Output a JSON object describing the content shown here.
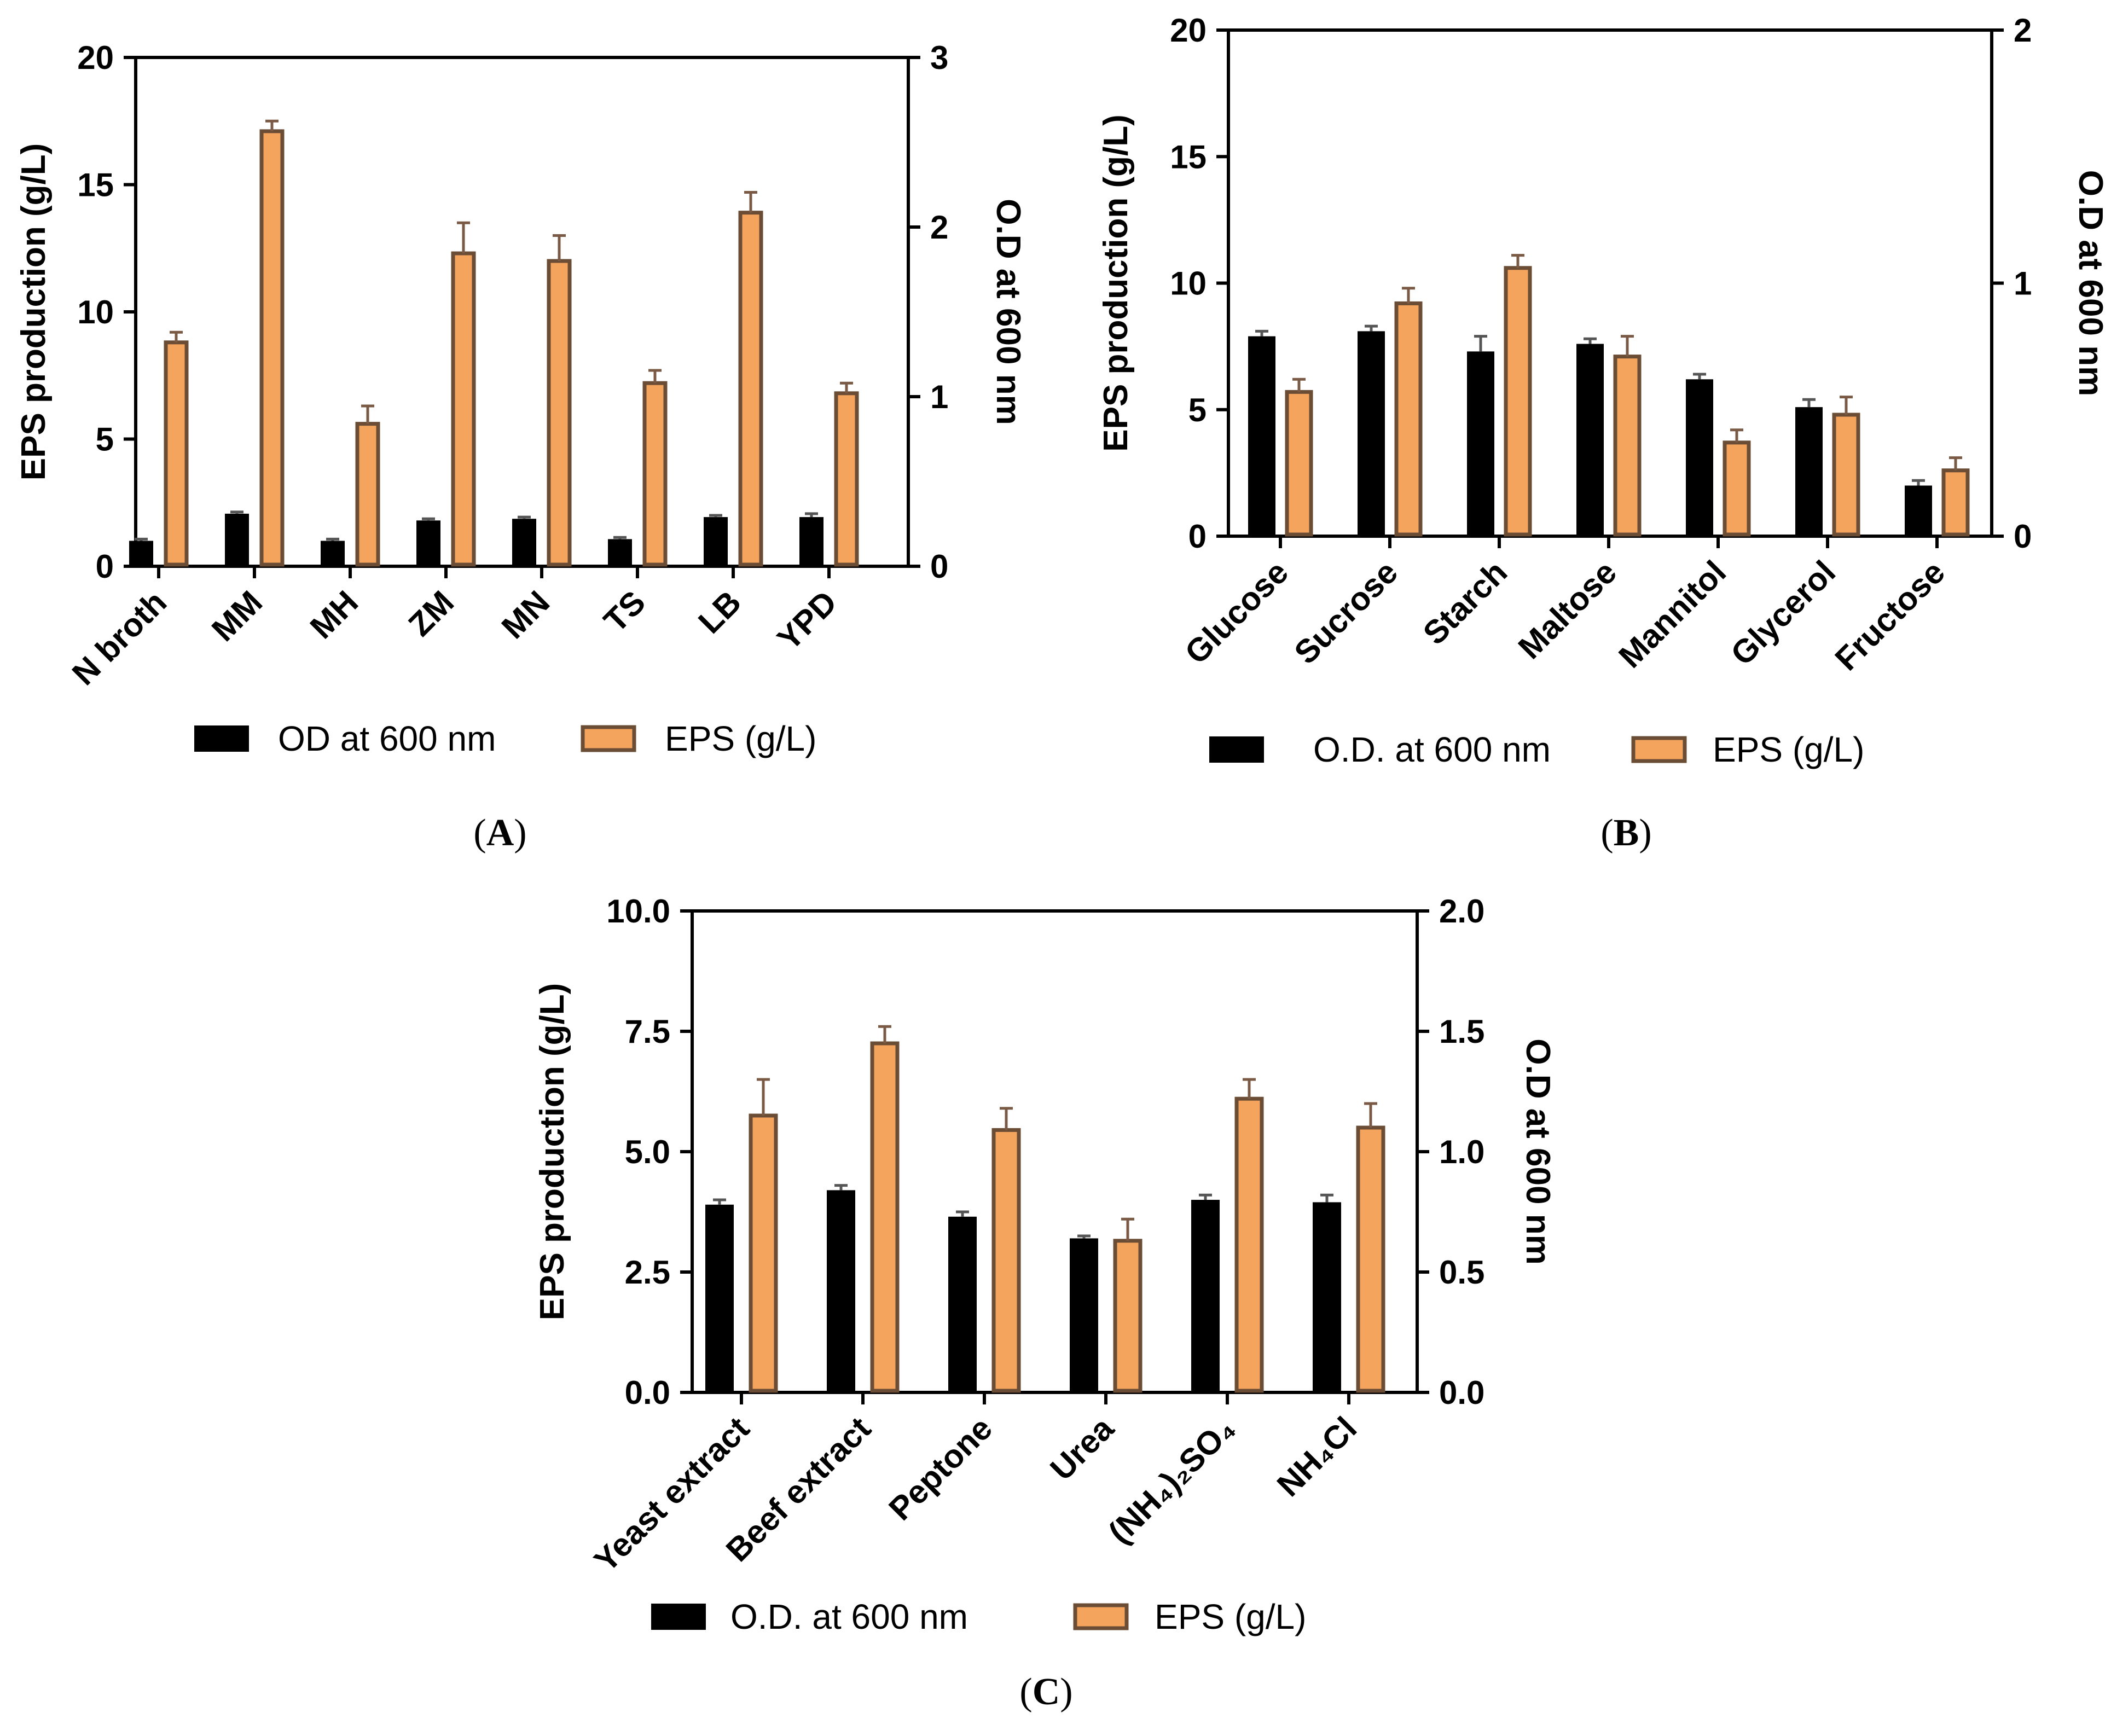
{
  "colors": {
    "od_fill": "#000000",
    "eps_fill": "#f5a45d",
    "eps_stroke": "#6b4c35"
  },
  "chart_data": [
    {
      "type": "bar",
      "panel": "A",
      "categories": [
        "N broth",
        "MM",
        "MH",
        "ZM",
        "MN",
        "TS",
        "LB",
        "YPD"
      ],
      "series": [
        {
          "name": "OD at 600 nm",
          "axis": "right",
          "values": [
            0.15,
            0.31,
            0.15,
            0.27,
            0.28,
            0.16,
            0.29,
            0.29
          ],
          "errors": [
            0.01,
            0.01,
            0.01,
            0.01,
            0.01,
            0.01,
            0.01,
            0.02
          ]
        },
        {
          "name": "EPS (g/L)",
          "axis": "left",
          "values": [
            8.8,
            17.1,
            5.6,
            12.3,
            12.0,
            7.2,
            13.9,
            6.8
          ],
          "errors": [
            0.4,
            0.4,
            0.7,
            1.2,
            1.0,
            0.5,
            0.8,
            0.4
          ]
        }
      ],
      "ylabel": "EPS production (g/L)",
      "y2label": "O.D at 600 nm",
      "ylim": [
        0,
        20
      ],
      "y2lim": [
        0,
        3
      ],
      "yticks": [
        "0",
        "5",
        "10",
        "15",
        "20"
      ],
      "y2ticks": [
        "0",
        "1",
        "2",
        "3"
      ],
      "legend": [
        "OD at 600 nm",
        "EPS (g/L)"
      ],
      "caption": {
        "open": "(",
        "letter": "A",
        "close": ")"
      }
    },
    {
      "type": "bar",
      "panel": "B",
      "categories": [
        "Glucose",
        "Sucrose",
        "Starch",
        "Maltose",
        "Mannitol",
        "Glycerol",
        "Fructose"
      ],
      "series": [
        {
          "name": "O.D. at 600 nm",
          "axis": "right",
          "values": [
            0.79,
            0.81,
            0.73,
            0.76,
            0.62,
            0.51,
            0.2
          ],
          "errors": [
            0.02,
            0.02,
            0.06,
            0.02,
            0.02,
            0.03,
            0.02
          ]
        },
        {
          "name": "EPS (g/L)",
          "axis": "left",
          "values": [
            5.7,
            9.2,
            10.6,
            7.1,
            3.7,
            4.8,
            2.6
          ],
          "errors": [
            0.5,
            0.6,
            0.5,
            0.8,
            0.5,
            0.7,
            0.5
          ]
        }
      ],
      "ylabel": "EPS production (g/L)",
      "y2label": "O.D at 600 nm",
      "ylim": [
        0,
        20
      ],
      "y2lim": [
        0,
        2
      ],
      "yticks": [
        "0",
        "5",
        "10",
        "15",
        "20"
      ],
      "y2ticks": [
        "0",
        "1",
        "2"
      ],
      "legend": [
        "O.D. at 600 nm",
        "EPS (g/L)"
      ],
      "caption": {
        "open": "(",
        "letter": "B",
        "close": ")"
      }
    },
    {
      "type": "bar",
      "panel": "C",
      "categories": [
        "Yeast extract",
        "Beef extract",
        "Peptone",
        "Urea",
        "(NH₄)₂SO₄",
        "NH₄Cl"
      ],
      "series": [
        {
          "name": "O.D. at 600 nm",
          "axis": "right",
          "values": [
            0.78,
            0.84,
            0.73,
            0.64,
            0.8,
            0.79
          ],
          "errors": [
            0.02,
            0.02,
            0.02,
            0.01,
            0.02,
            0.03
          ]
        },
        {
          "name": "EPS (g/L)",
          "axis": "left",
          "values": [
            5.75,
            7.25,
            5.45,
            3.15,
            6.1,
            5.5
          ],
          "errors": [
            0.75,
            0.35,
            0.45,
            0.45,
            0.4,
            0.5
          ]
        }
      ],
      "ylabel": "EPS production (g/L)",
      "y2label": "O.D at 600 nm",
      "ylim": [
        0,
        10
      ],
      "y2lim": [
        0,
        2
      ],
      "yticks": [
        "0.0",
        "2.5",
        "5.0",
        "7.5",
        "10.0"
      ],
      "y2ticks": [
        "0.0",
        "0.5",
        "1.0",
        "1.5",
        "2.0"
      ],
      "legend": [
        "O.D. at 600 nm",
        "EPS (g/L)"
      ],
      "caption": {
        "open": "(",
        "letter": "C",
        "close": ")"
      }
    }
  ]
}
